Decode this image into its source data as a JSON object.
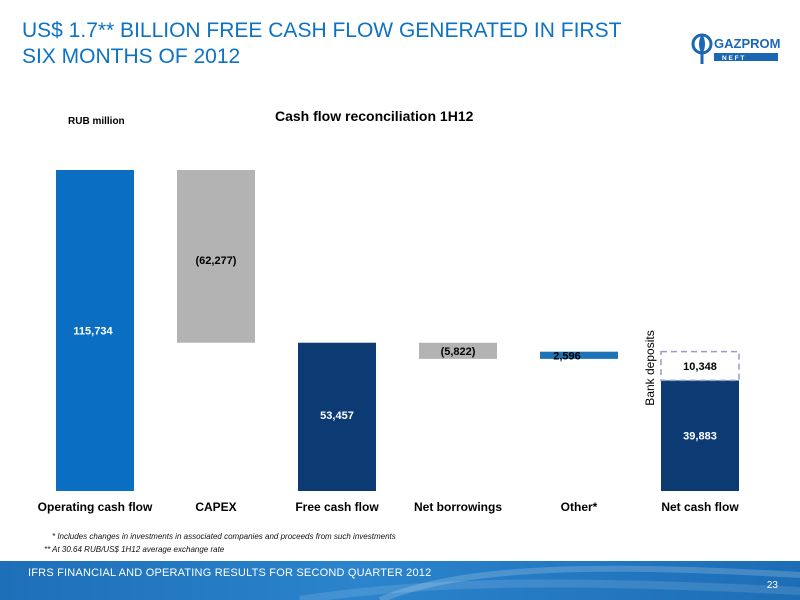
{
  "slide": {
    "title": "US$ 1.7** BILLION FREE CASH FLOW GENERATED IN FIRST\nSIX MONTHS OF 2012",
    "logo_text": "GAZPROM",
    "logo_subtext": "N E F T",
    "unit_label": "RUB million",
    "footnote_1": "* Includes changes in investments in associated companies and proceeds from such investments",
    "footnote_2": "** At 30.64 RUB/US$ 1H12 average exchange rate",
    "footer_text": "IFRS FINANCIAL AND OPERATING RESULTS FOR SECOND QUARTER 2012",
    "page_number": "23"
  },
  "colors": {
    "title_blue": "#0d72c4",
    "operating_blue": "#0a6fc2",
    "gray": "#b3b3b3",
    "navy": "#0c3b74",
    "other_blue": "#1e73b7",
    "deposit_dash": "#9a9acb"
  },
  "chart_data": {
    "type": "bar",
    "subtype": "waterfall",
    "title": "Cash flow reconciliation 1H12",
    "ylabel": "RUB million",
    "ylim": [
      0,
      120000
    ],
    "grid": false,
    "categories": [
      "Operating cash flow",
      "CAPEX",
      "Free cash flow",
      "Net borrowings",
      "Other*",
      "Net cash flow"
    ],
    "bars": [
      {
        "category": "Operating cash flow",
        "start": 0,
        "end": 115734,
        "label": "115,734",
        "color": "#0a6fc2",
        "label_color": "#ffffff"
      },
      {
        "category": "CAPEX",
        "start": 115734,
        "end": 53457,
        "label": "(62,277)",
        "color": "#b3b3b3",
        "label_color": "#000000"
      },
      {
        "category": "Free cash flow",
        "start": 0,
        "end": 53457,
        "label": "53,457",
        "color": "#0c3b74",
        "label_color": "#ffffff"
      },
      {
        "category": "Net borrowings",
        "start": 53457,
        "end": 47635,
        "label": "(5,822)",
        "color": "#b3b3b3",
        "label_color": "#000000"
      },
      {
        "category": "Other*",
        "start": 47635,
        "end": 50231,
        "label": "2,596",
        "color": "#1e73b7",
        "label_color": "#000000"
      },
      {
        "category": "Net cash flow",
        "start": 0,
        "end": 39883,
        "label": "39,883",
        "color": "#0c3b74",
        "label_color": "#ffffff"
      }
    ],
    "stacked_segment": {
      "category": "Net cash flow",
      "start": 39883,
      "end": 50231,
      "label": "10,348",
      "style": "dashed outline",
      "annotation": "Bank deposits"
    }
  }
}
